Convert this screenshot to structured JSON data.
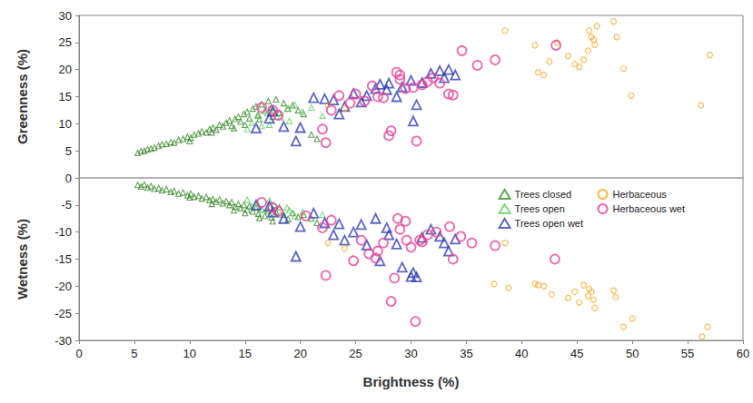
{
  "chart_data": {
    "type": "scatter",
    "xlabel": "Brightness (%)",
    "ylabel": [
      "Greenness (%)",
      "Wetness (%)"
    ],
    "xlim": [
      0,
      60
    ],
    "xticks": [
      0,
      5,
      10,
      15,
      20,
      25,
      30,
      35,
      40,
      45,
      50,
      55,
      60
    ],
    "ylim": [
      -30,
      30
    ],
    "yticks": [
      -30,
      -25,
      -20,
      -15,
      -10,
      -5,
      0,
      5,
      10,
      15,
      20,
      25,
      30
    ],
    "grid": false,
    "legend": "right",
    "series": [
      {
        "name": "Trees closed",
        "color": "#3c8a2e",
        "marker": "small-triangle",
        "x": [
          5.3,
          5.6,
          5.9,
          6.2,
          6.5,
          6.8,
          7.2,
          7.5,
          7.9,
          8.3,
          8.6,
          9.0,
          9.4,
          9.8,
          10.1,
          10.4,
          10.8,
          11.1,
          11.5,
          11.8,
          12.1,
          12.4,
          12.7,
          13.0,
          13.3,
          13.6,
          13.8,
          14.1,
          14.4,
          14.6,
          14.9,
          15.2,
          15.4,
          15.7,
          16.0,
          16.2,
          16.5,
          16.8,
          17.1,
          17.4,
          17.8,
          18.1,
          18.5,
          18.9,
          19.3,
          19.8,
          20.3,
          14.0,
          15.0,
          16.3,
          17.5,
          21.0,
          21.5,
          12.0,
          10.0,
          5.3,
          5.6,
          5.9,
          6.2,
          6.5,
          6.8,
          7.2,
          7.5,
          7.9,
          8.3,
          8.6,
          9.0,
          9.4,
          9.8,
          10.1,
          10.4,
          10.8,
          11.1,
          11.5,
          11.8,
          12.1,
          12.4,
          12.7,
          13.0,
          13.3,
          13.6,
          13.8,
          14.1,
          14.4,
          14.6,
          14.9,
          15.2,
          15.4,
          15.7,
          16.0,
          16.2,
          16.5,
          16.8,
          17.1,
          17.4,
          17.8,
          18.1,
          18.5,
          18.9,
          19.3,
          19.8,
          20.3,
          14.0,
          15.0,
          16.3,
          17.5,
          21.0,
          21.5,
          12.0,
          10.0
        ],
        "values": [
          4.6,
          4.9,
          5.0,
          5.3,
          5.4,
          5.6,
          5.9,
          6.2,
          6.3,
          6.6,
          6.5,
          7.0,
          7.2,
          7.6,
          7.4,
          8.0,
          8.2,
          8.6,
          8.4,
          9.0,
          9.3,
          8.9,
          9.8,
          9.5,
          10.2,
          10.6,
          9.6,
          10.9,
          11.3,
          10.4,
          11.8,
          12.2,
          11.0,
          12.8,
          13.2,
          11.6,
          13.6,
          12.4,
          14.2,
          13.0,
          14.5,
          12.0,
          13.8,
          12.8,
          13.4,
          12.5,
          11.8,
          9.2,
          9.8,
          10.8,
          11.3,
          8.0,
          7.2,
          8.4,
          6.8,
          -1.3,
          -1.6,
          -1.2,
          -1.8,
          -1.5,
          -2.0,
          -1.9,
          -2.3,
          -2.1,
          -2.6,
          -2.4,
          -2.9,
          -2.7,
          -3.2,
          -2.9,
          -3.5,
          -3.3,
          -3.8,
          -3.5,
          -4.1,
          -3.9,
          -4.4,
          -4.0,
          -4.7,
          -4.3,
          -5.0,
          -4.5,
          -5.3,
          -4.8,
          -5.6,
          -5.0,
          -5.9,
          -5.2,
          -6.2,
          -5.5,
          -6.6,
          -5.8,
          -7.0,
          -6.0,
          -7.3,
          -6.3,
          -5.4,
          -6.8,
          -7.6,
          -6.5,
          -7.2,
          -6.8,
          -6.0,
          -6.5,
          -7.4,
          -8.0,
          -7.5,
          -8.3,
          -4.8,
          -3.6
        ]
      },
      {
        "name": "Trees open",
        "color": "#5fd35f",
        "marker": "small-triangle",
        "x": [
          15.2,
          15.6,
          16.1,
          16.5,
          17.0,
          17.6,
          18.2,
          18.8,
          19.5,
          20.2,
          21.0,
          22.0,
          17.2,
          19.0,
          15.2,
          15.6,
          16.1,
          16.5,
          17.0,
          17.6,
          18.2,
          18.8,
          19.5,
          20.2,
          21.0,
          22.0,
          17.2,
          19.0
        ],
        "values": [
          9.0,
          10.2,
          11.5,
          9.6,
          12.0,
          12.5,
          11.2,
          12.8,
          13.5,
          12.2,
          13.0,
          11.5,
          9.8,
          10.5,
          -4.0,
          -5.2,
          -4.6,
          -5.8,
          -6.2,
          -5.0,
          -6.8,
          -5.5,
          -7.0,
          -6.3,
          -7.5,
          -6.8,
          -4.2,
          -6.0
        ]
      },
      {
        "name": "Trees open wet",
        "color": "#3340b5",
        "marker": "large-triangle",
        "x": [
          16.0,
          17.2,
          17.5,
          18.5,
          19.6,
          20.0,
          21.2,
          22.2,
          23.0,
          24.0,
          24.8,
          25.5,
          26.0,
          26.8,
          27.2,
          27.8,
          28.7,
          29.2,
          30.0,
          30.2,
          31.0,
          31.8,
          32.6,
          33.0,
          33.4,
          34.0,
          30.5,
          28.0,
          23.5,
          16.0,
          17.2,
          17.5,
          18.5,
          19.6,
          20.0,
          21.2,
          22.2,
          23.0,
          24.0,
          24.8,
          25.5,
          26.0,
          26.8,
          27.2,
          27.8,
          28.7,
          29.2,
          30.0,
          30.2,
          31.0,
          31.8,
          32.6,
          33.0,
          33.4,
          34.0,
          30.5,
          28.0,
          23.5
        ],
        "values": [
          9.2,
          11.0,
          12.3,
          9.5,
          6.8,
          9.3,
          14.8,
          14.6,
          14.4,
          13.2,
          15.6,
          14.0,
          15.2,
          16.5,
          17.3,
          16.3,
          15.0,
          16.8,
          18.0,
          10.5,
          17.6,
          19.3,
          19.8,
          18.5,
          20.0,
          19.0,
          13.5,
          17.5,
          11.8,
          -5.0,
          -5.2,
          -6.3,
          -7.5,
          -14.5,
          -9.0,
          -6.5,
          -8.3,
          -10.5,
          -11.5,
          -10.0,
          -8.6,
          -12.4,
          -7.5,
          -15.3,
          -9.2,
          -12.2,
          -16.5,
          -18.2,
          -17.5,
          -11.0,
          -9.5,
          -10.8,
          -12.0,
          -13.5,
          -11.3,
          -18.3,
          -10.5,
          -8.5
        ]
      },
      {
        "name": "Herbaceous",
        "color": "#f5a623",
        "marker": "small-circle",
        "x": [
          22.5,
          24.0,
          38.5,
          41.2,
          42.0,
          42.5,
          43.2,
          44.2,
          44.8,
          45.2,
          45.6,
          46.1,
          46.3,
          46.5,
          46.6,
          46.8,
          48.3,
          48.6,
          49.2,
          49.9,
          56.2,
          57.0,
          46.0,
          41.5,
          22.5,
          24.0,
          38.5,
          37.5,
          38.8,
          41.2,
          42.0,
          42.7,
          44.2,
          44.8,
          45.2,
          45.6,
          46.1,
          46.3,
          46.5,
          46.6,
          48.3,
          48.5,
          49.2,
          50.0,
          56.3,
          56.8,
          46.0,
          41.5
        ],
        "values": [
          13.5,
          12.8,
          27.2,
          24.5,
          19.0,
          21.5,
          25.0,
          22.5,
          21.0,
          20.5,
          21.8,
          27.2,
          26.0,
          25.5,
          24.6,
          28.0,
          28.9,
          26.0,
          20.2,
          15.2,
          13.4,
          22.7,
          23.5,
          19.5,
          -12.0,
          -13.0,
          -12.0,
          -19.6,
          -20.3,
          -19.6,
          -20.0,
          -21.5,
          -22.2,
          -21.0,
          -23.0,
          -19.8,
          -20.5,
          -21.0,
          -22.5,
          -24.0,
          -20.8,
          -22.0,
          -27.5,
          -26.0,
          -29.3,
          -27.5,
          -21.8,
          -19.8
        ]
      },
      {
        "name": "Herbaceous wet",
        "color": "#e8449a",
        "marker": "large-circle",
        "x": [
          16.5,
          17.5,
          18.0,
          22.3,
          22.0,
          22.8,
          23.5,
          24.5,
          25.0,
          25.8,
          26.5,
          27.0,
          27.5,
          28.0,
          28.2,
          28.7,
          29.0,
          29.5,
          30.2,
          30.5,
          31.0,
          32.0,
          32.6,
          33.4,
          33.8,
          34.6,
          36.0,
          37.6,
          43.1,
          29.0,
          31.5,
          16.5,
          17.5,
          18.0,
          20.5,
          22.0,
          22.3,
          22.8,
          24.8,
          25.5,
          26.2,
          26.8,
          27.5,
          28.2,
          28.5,
          28.8,
          29.0,
          29.5,
          30.0,
          30.4,
          30.8,
          31.5,
          32.3,
          33.5,
          33.8,
          34.5,
          35.5,
          37.6,
          43.0,
          29.6,
          31.0,
          27.0
        ],
        "values": [
          13.0,
          12.5,
          11.6,
          6.5,
          9.0,
          12.5,
          15.2,
          13.8,
          15.5,
          14.2,
          17.0,
          15.0,
          14.8,
          7.8,
          8.7,
          19.5,
          18.2,
          16.5,
          16.7,
          6.8,
          17.2,
          18.5,
          17.5,
          15.5,
          15.3,
          23.5,
          20.8,
          21.8,
          24.5,
          19.0,
          17.8,
          -4.5,
          -5.5,
          -6.2,
          -7.0,
          -9.2,
          -18.0,
          -7.8,
          -15.3,
          -11.5,
          -14.0,
          -14.8,
          -12.0,
          -22.8,
          -18.5,
          -7.5,
          -9.5,
          -8.0,
          -12.8,
          -26.5,
          -11.5,
          -10.5,
          -10.0,
          -9.0,
          -15.0,
          -10.8,
          -12.0,
          -12.5,
          -15.0,
          -11.5,
          -11.8,
          -13.5
        ]
      }
    ]
  }
}
